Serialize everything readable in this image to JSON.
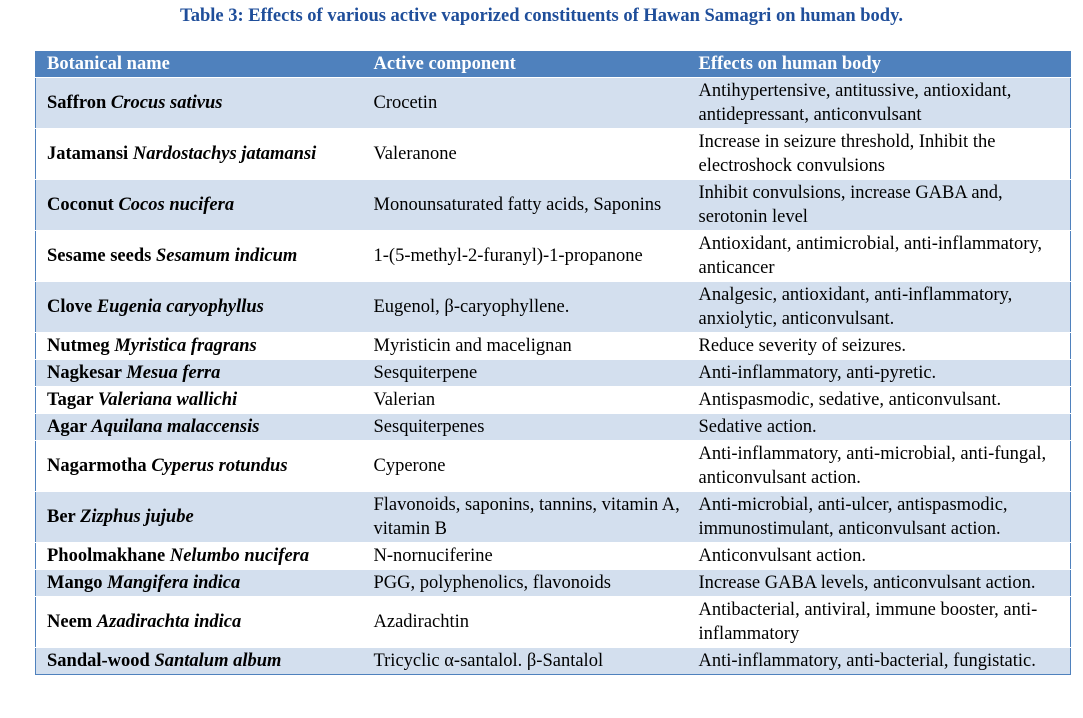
{
  "title": "Table 3: Effects of various active vaporized constituents of Hawan Samagri on human body.",
  "table": {
    "headers": [
      "Botanical name",
      "Active component",
      "Effects on human body"
    ],
    "rows": [
      {
        "common": "Saffron",
        "latin": "Crocus sativus",
        "component": "Crocetin",
        "effects": "Antihypertensive, antitussive, antioxidant, antidepressant, anticonvulsant"
      },
      {
        "common": "Jatamansi",
        "latin": "Nardostachys jatamansi",
        "component": "Valeranone",
        "effects": "Increase in seizure threshold, Inhibit the electroshock convulsions"
      },
      {
        "common": "Coconut",
        "latin": "Cocos nucifera",
        "component": "Monounsaturated fatty acids, Saponins",
        "effects": "Inhibit convulsions, increase GABA and, serotonin level"
      },
      {
        "common": "Sesame seeds",
        "latin": "Sesamum indicum",
        "component": "1-(5-methyl-2-furanyl)-1-propanone",
        "effects": "Antioxidant, antimicrobial, anti-inflammatory, anticancer"
      },
      {
        "common": "Clove",
        "latin": "Eugenia caryophyllus",
        "component": "Eugenol, β-caryophyllene.",
        "effects": "Analgesic, antioxidant, anti-inflammatory, anxiolytic, anticonvulsant."
      },
      {
        "common": "Nutmeg",
        "latin": "Myristica fragrans",
        "component": "Myristicin and macelignan",
        "effects": "Reduce severity of seizures."
      },
      {
        "common": "Nagkesar",
        "latin": "Mesua ferra",
        "component": "Sesquiterpene",
        "effects": "Anti-inflammatory, anti-pyretic."
      },
      {
        "common": "Tagar",
        "latin": "Valeriana wallichi",
        "component": "Valerian",
        "effects": "Antispasmodic, sedative, anticonvulsant."
      },
      {
        "common": "Agar",
        "latin": "Aquilana malaccensis",
        "component": "Sesquiterpenes",
        "effects": "Sedative action."
      },
      {
        "common": "Nagarmotha",
        "latin": "Cyperus rotundus",
        "component": "Cyperone",
        "effects": "Anti-inflammatory, anti-microbial, anti-fungal, anticonvulsant action."
      },
      {
        "common": "Ber",
        "latin": "Zizphus jujube",
        "component": "Flavonoids, saponins, tannins, vitamin A, vitamin B",
        "effects": "Anti-microbial, anti-ulcer, antispasmodic, immunostimulant, anticonvulsant action."
      },
      {
        "common": "Phoolmakhane",
        "latin": "Nelumbo nucifera",
        "component": "N-nornuciferine",
        "effects": "Anticonvulsant action."
      },
      {
        "common": "Mango",
        "latin": "Mangifera indica",
        "component": "PGG, polyphenolics, flavonoids",
        "effects": "Increase GABA levels, anticonvulsant action."
      },
      {
        "common": "Neem",
        "latin": "Azadirachta indica",
        "component": "Azadirachtin",
        "effects": "Antibacterial, antiviral, immune booster, anti-inflammatory"
      },
      {
        "common": "Sandal-wood",
        "latin": "Santalum album",
        "component": "Tricyclic α-santalol. β-Santalol",
        "effects": "Anti-inflammatory, anti-bacterial, fungistatic."
      }
    ]
  }
}
